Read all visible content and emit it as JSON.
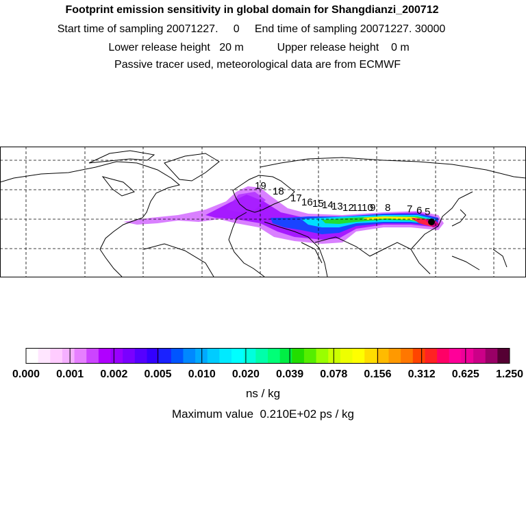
{
  "header": {
    "title": "Footprint emission sensitivity in global domain for Shangdianzi_200712",
    "sampling": "Start time of sampling 20071227.     0     End time of sampling 20071227. 30000",
    "release": "Lower release height   20 m           Upper release height    0 m",
    "tracer": "Passive tracer used, meteorological data are from ECMWF"
  },
  "map": {
    "gridlines": "dashed",
    "day_labels": [
      "19",
      "18",
      "17",
      "16",
      "15",
      "14",
      "13",
      "12",
      "11",
      "10",
      "9",
      "8",
      "7",
      "6",
      "5"
    ]
  },
  "colorbar": {
    "tick_labels": [
      "0.000",
      "0.001",
      "0.002",
      "0.005",
      "0.010",
      "0.020",
      "0.039",
      "0.078",
      "0.156",
      "0.312",
      "0.625",
      "1.250"
    ],
    "colors": [
      "#ffffff",
      "#ffe6ff",
      "#ffccff",
      "#f5b0ff",
      "#e680ff",
      "#cc44ff",
      "#b000ff",
      "#9900ff",
      "#7a00ff",
      "#5500ff",
      "#3300ff",
      "#1a22ff",
      "#0055ff",
      "#0088ff",
      "#00aaff",
      "#00ccff",
      "#00eaff",
      "#00ffff",
      "#00ffdd",
      "#00ffaa",
      "#00ff77",
      "#00ee44",
      "#22dd00",
      "#55ee00",
      "#99ff00",
      "#ccff00",
      "#eeff00",
      "#ffff00",
      "#ffdd00",
      "#ffbb00",
      "#ff9900",
      "#ff7700",
      "#ff4400",
      "#ff2222",
      "#ff0066",
      "#ff0099",
      "#ee0099",
      "#cc0088",
      "#990066",
      "#550033"
    ],
    "unit": "ns / kg",
    "max_value": "Maximum value  0.210E+02 ps / kg"
  }
}
